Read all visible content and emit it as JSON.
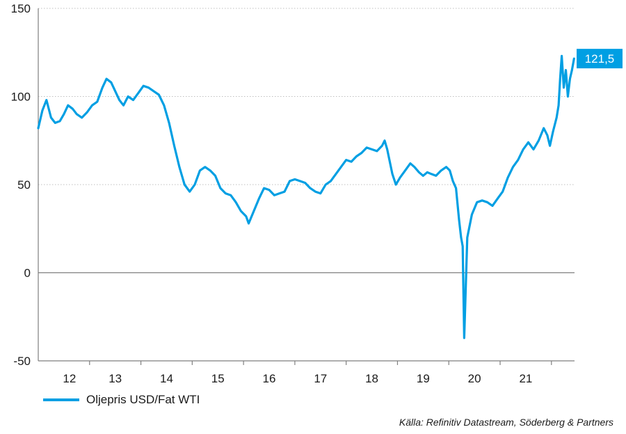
{
  "chart_data": {
    "type": "line",
    "title": "",
    "xlabel": "",
    "ylabel": "",
    "ylim": [
      -50,
      150
    ],
    "yticks": [
      150,
      100,
      50,
      0,
      -50
    ],
    "xlim": [
      2012.0,
      2022.45
    ],
    "xticks": [
      "12",
      "13",
      "14",
      "15",
      "16",
      "17",
      "18",
      "19",
      "20",
      "21"
    ],
    "grid": "horizontal-dotted",
    "accent_color": "#009fe3",
    "series": [
      {
        "name": "Oljepris USD/Fat WTI",
        "x": [
          2012.0,
          2012.08,
          2012.16,
          2012.25,
          2012.33,
          2012.42,
          2012.5,
          2012.58,
          2012.67,
          2012.75,
          2012.85,
          2012.95,
          2013.05,
          2013.15,
          2013.25,
          2013.33,
          2013.42,
          2013.5,
          2013.58,
          2013.66,
          2013.75,
          2013.85,
          2013.95,
          2014.05,
          2014.15,
          2014.25,
          2014.35,
          2014.45,
          2014.55,
          2014.65,
          2014.75,
          2014.85,
          2014.95,
          2015.05,
          2015.15,
          2015.25,
          2015.35,
          2015.45,
          2015.55,
          2015.65,
          2015.75,
          2015.85,
          2015.95,
          2016.05,
          2016.1,
          2016.2,
          2016.3,
          2016.4,
          2016.5,
          2016.6,
          2016.7,
          2016.8,
          2016.9,
          2017.0,
          2017.1,
          2017.2,
          2017.3,
          2017.4,
          2017.5,
          2017.6,
          2017.7,
          2017.8,
          2017.9,
          2018.0,
          2018.1,
          2018.2,
          2018.3,
          2018.4,
          2018.5,
          2018.6,
          2018.7,
          2018.75,
          2018.8,
          2018.9,
          2018.97,
          2019.05,
          2019.15,
          2019.25,
          2019.33,
          2019.42,
          2019.5,
          2019.58,
          2019.66,
          2019.75,
          2019.85,
          2019.95,
          2020.02,
          2020.08,
          2020.14,
          2020.2,
          2020.24,
          2020.27,
          2020.3,
          2020.36,
          2020.45,
          2020.55,
          2020.65,
          2020.75,
          2020.85,
          2020.95,
          2021.05,
          2021.15,
          2021.25,
          2021.35,
          2021.45,
          2021.55,
          2021.65,
          2021.75,
          2021.85,
          2021.92,
          2021.97,
          2022.03,
          2022.1,
          2022.14,
          2022.17,
          2022.2,
          2022.24,
          2022.28,
          2022.32,
          2022.36,
          2022.4,
          2022.44
        ],
        "values": [
          82,
          92,
          98,
          88,
          85,
          86,
          90,
          95,
          93,
          90,
          88,
          91,
          95,
          97,
          105,
          110,
          108,
          103,
          98,
          95,
          100,
          98,
          102,
          106,
          105,
          103,
          101,
          95,
          85,
          72,
          60,
          50,
          46,
          50,
          58,
          60,
          58,
          55,
          48,
          45,
          44,
          40,
          35,
          32,
          28,
          35,
          42,
          48,
          47,
          44,
          45,
          46,
          52,
          53,
          52,
          51,
          48,
          46,
          45,
          50,
          52,
          56,
          60,
          64,
          63,
          66,
          68,
          71,
          70,
          69,
          72,
          75,
          70,
          56,
          50,
          54,
          58,
          62,
          60,
          57,
          55,
          57,
          56,
          55,
          58,
          60,
          58,
          52,
          48,
          30,
          20,
          15,
          -37,
          20,
          33,
          40,
          41,
          40,
          38,
          42,
          46,
          54,
          60,
          64,
          70,
          74,
          70,
          75,
          82,
          78,
          72,
          80,
          88,
          95,
          110,
          123,
          105,
          115,
          100,
          110,
          115,
          121.5
        ]
      }
    ],
    "end_label": "121,5"
  },
  "legend": {
    "label": "Oljepris USD/Fat WTI"
  },
  "source": "Källa: Refinitiv Datastream, Söderberg & Partners"
}
